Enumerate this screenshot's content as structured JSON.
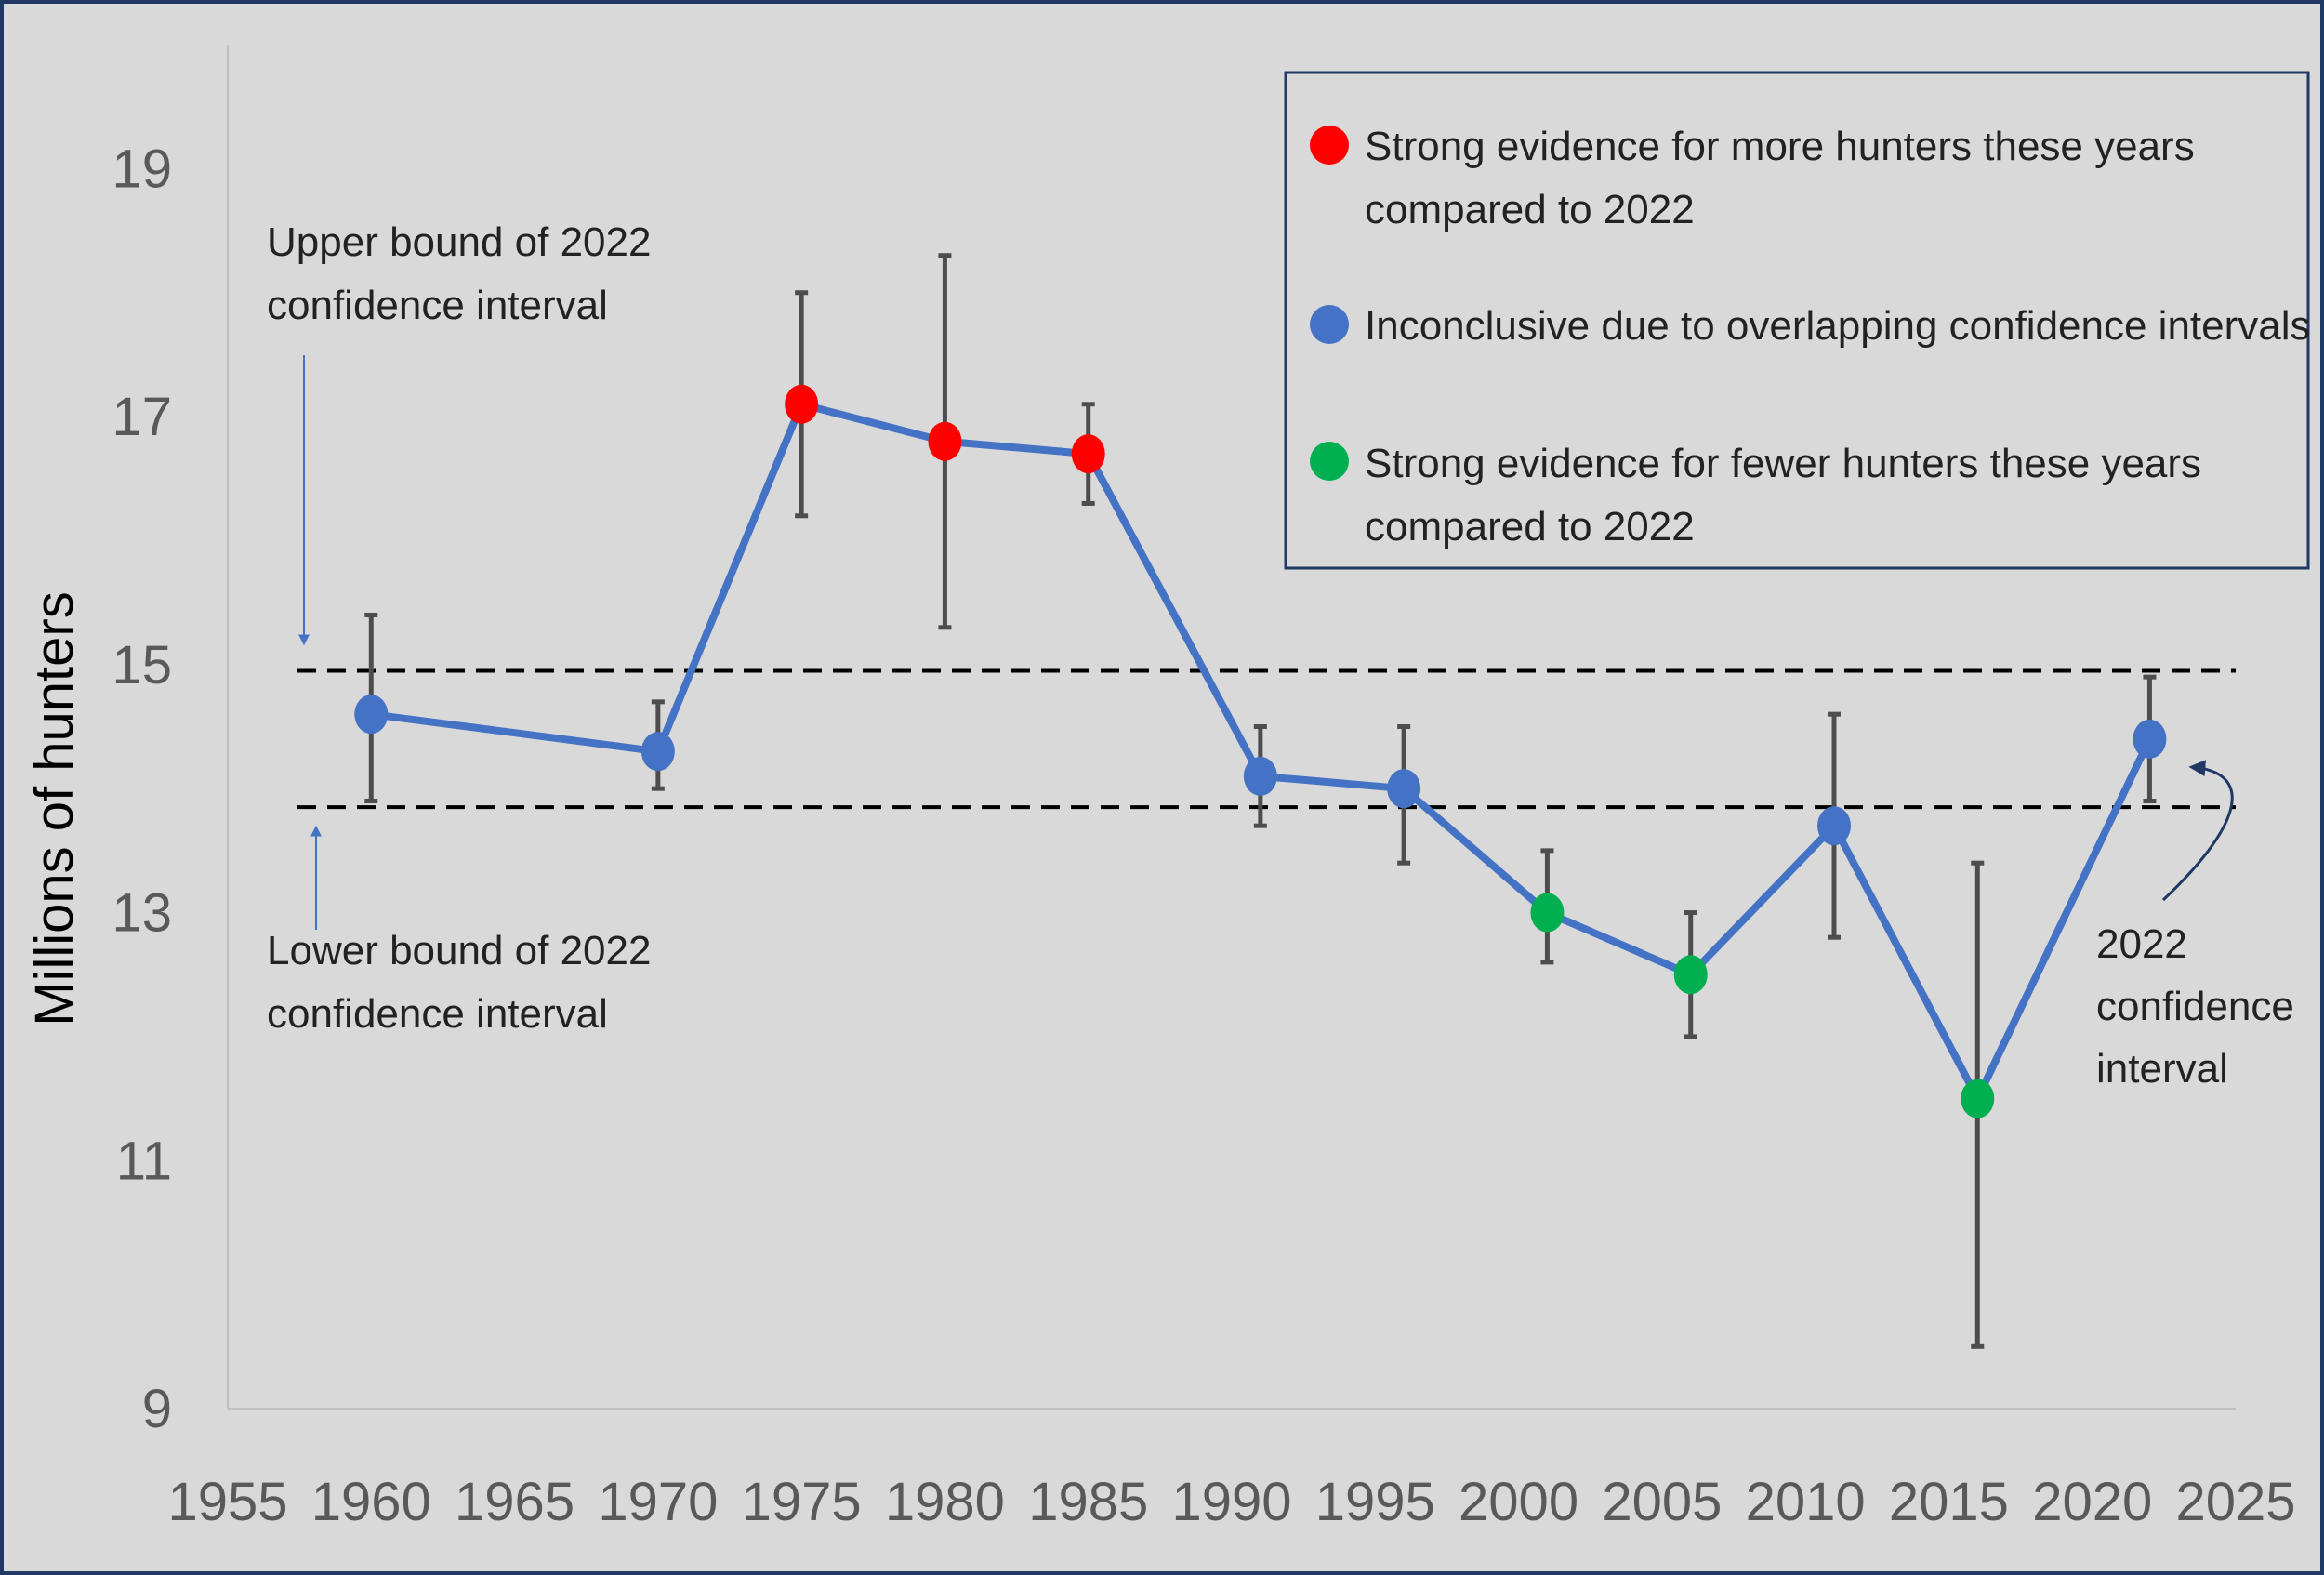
{
  "chart_data": {
    "type": "line",
    "ylabel": "Millions of hunters",
    "xlim": [
      1955,
      2025
    ],
    "ylim": [
      9,
      20
    ],
    "x_ticks": [
      "1955",
      "1960",
      "1965",
      "1970",
      "1975",
      "1980",
      "1985",
      "1990",
      "1995",
      "2000",
      "2005",
      "2010",
      "2015",
      "2020",
      "2025"
    ],
    "y_ticks": [
      "9",
      "11",
      "13",
      "15",
      "17",
      "19"
    ],
    "grid": false,
    "legend_position": "top-right",
    "line_color": "#4472c4",
    "errorbar_color": "#4d4d4d",
    "categories": {
      "more": {
        "label": "Strong evidence for more hunters these years compared to 2022",
        "color": "#ff0000"
      },
      "inconclusive": {
        "label": "Inconclusive due to overlapping confidence intervals",
        "color": "#4472c4"
      },
      "fewer": {
        "label": "Strong evidence for fewer hunters these years compared to 2022",
        "color": "#00b050"
      }
    },
    "points": [
      {
        "x": 1960,
        "y": 14.6,
        "low": 13.9,
        "high": 15.4,
        "category": "inconclusive"
      },
      {
        "x": 1970,
        "y": 14.3,
        "low": 14.0,
        "high": 14.7,
        "category": "inconclusive"
      },
      {
        "x": 1975,
        "y": 17.1,
        "low": 16.2,
        "high": 18.0,
        "category": "more"
      },
      {
        "x": 1980,
        "y": 16.8,
        "low": 15.3,
        "high": 18.3,
        "category": "more"
      },
      {
        "x": 1985,
        "y": 16.7,
        "low": 16.3,
        "high": 17.1,
        "category": "more"
      },
      {
        "x": 1991,
        "y": 14.1,
        "low": 13.7,
        "high": 14.5,
        "category": "inconclusive"
      },
      {
        "x": 1996,
        "y": 14.0,
        "low": 13.4,
        "high": 14.5,
        "category": "inconclusive"
      },
      {
        "x": 2001,
        "y": 13.0,
        "low": 12.6,
        "high": 13.5,
        "category": "fewer"
      },
      {
        "x": 2006,
        "y": 12.5,
        "low": 12.0,
        "high": 13.0,
        "category": "fewer"
      },
      {
        "x": 2011,
        "y": 13.7,
        "low": 12.8,
        "high": 14.6,
        "category": "inconclusive"
      },
      {
        "x": 2016,
        "y": 11.5,
        "low": 9.5,
        "high": 13.4,
        "category": "fewer"
      },
      {
        "x": 2022,
        "y": 14.4,
        "low": 13.9,
        "high": 14.9,
        "category": "inconclusive"
      }
    ],
    "reference_lines": [
      {
        "name": "upper",
        "y": 14.95
      },
      {
        "name": "lower",
        "y": 13.85
      }
    ],
    "annotations": {
      "upper": [
        "Upper bound of 2022",
        "confidence interval"
      ],
      "lower": [
        "Lower bound of 2022",
        "confidence interval"
      ],
      "ci2022": [
        "2022",
        "confidence",
        "interval"
      ]
    },
    "legend_lines": {
      "more": [
        "Strong evidence for more hunters these years",
        "compared to 2022"
      ],
      "inconclusive": [
        "Inconclusive due to overlapping confidence intervals"
      ],
      "fewer": [
        "Strong evidence for fewer hunters these years",
        "compared to 2022"
      ]
    }
  }
}
